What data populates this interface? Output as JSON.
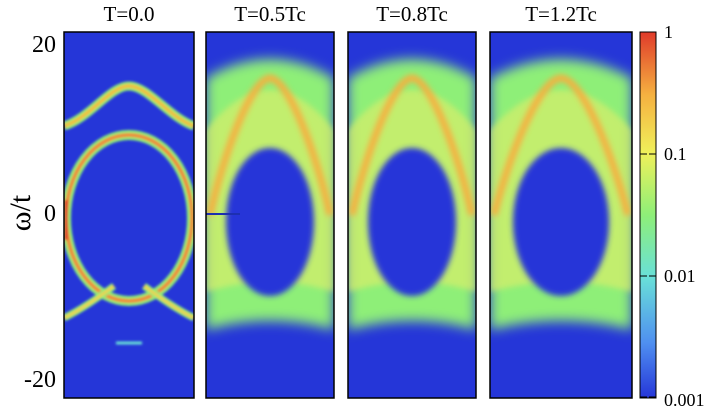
{
  "chart_data": {
    "type": "heatmap",
    "title": "",
    "ylabel": "ω/t",
    "xlabel": "",
    "ylim": [
      -22,
      22
    ],
    "yticks": [
      {
        "value": 20,
        "label": "20"
      },
      {
        "value": 0,
        "label": "0"
      },
      {
        "value": -20,
        "label": "-20"
      }
    ],
    "colorbar": {
      "scale": "log",
      "range": [
        0.001,
        1
      ],
      "ticks": [
        {
          "value": 1,
          "label": "1"
        },
        {
          "value": 0.1,
          "label": "0.1"
        },
        {
          "value": 0.01,
          "label": "0.01"
        },
        {
          "value": 0.001,
          "label": "0.001"
        }
      ],
      "colormap": [
        "#2536d8",
        "#4f8ff0",
        "#69e0d8",
        "#8eef78",
        "#f0f05a",
        "#f5b040",
        "#e03a2a"
      ]
    },
    "panels": [
      {
        "label": "T=0.0",
        "temperature_over_Tc": 0.0,
        "inner_band_max": 9.0,
        "inner_band_min": -10.5,
        "outer_band_max": 14.5,
        "lower_branch": -13.5,
        "bottom_feature": -16.0
      },
      {
        "label": "T=0.5Tc",
        "temperature_over_Tc": 0.5,
        "inner_band_max": 14.5,
        "inner_band_min": -8.0,
        "gap_center": 0.0
      },
      {
        "label": "T=0.8Tc",
        "temperature_over_Tc": 0.8,
        "inner_band_max": 14.5,
        "inner_band_min": -8.0,
        "gap_center": 0.0
      },
      {
        "label": "T=1.2Tc",
        "temperature_over_Tc": 1.2,
        "inner_band_max": 14.5,
        "inner_band_min": -8.0,
        "gap_center": 0.0
      }
    ]
  }
}
